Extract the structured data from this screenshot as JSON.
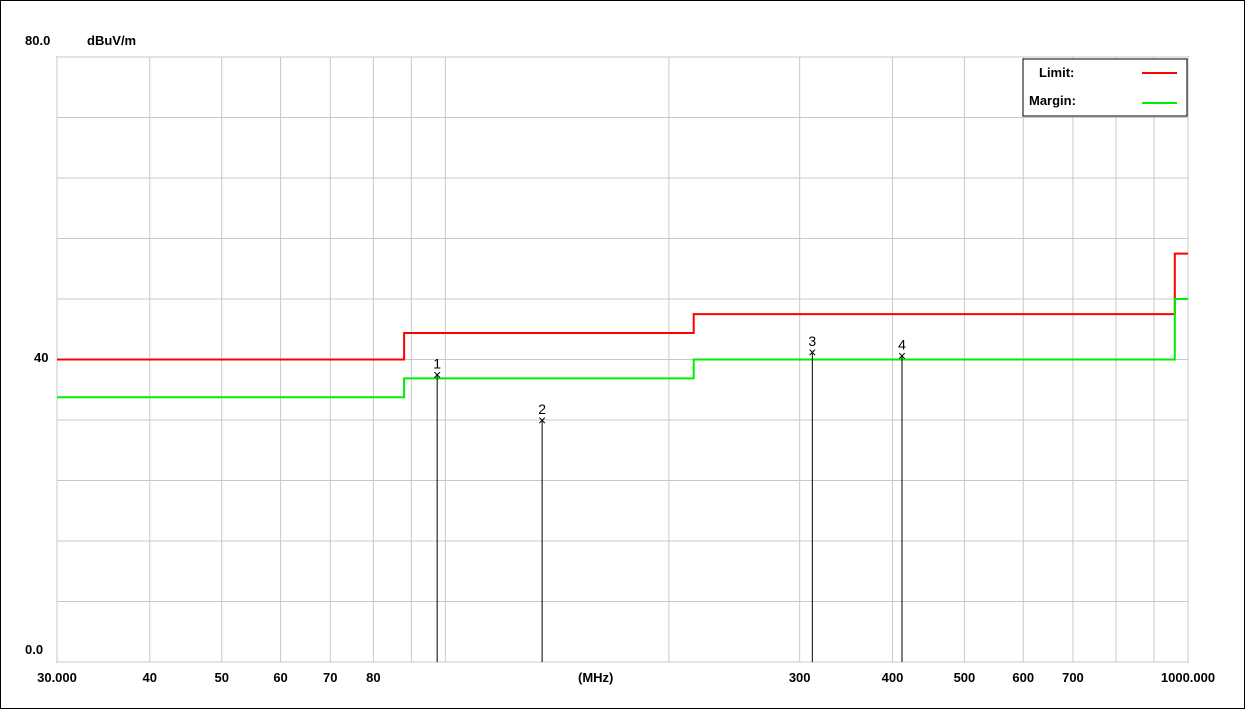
{
  "chart_data": {
    "type": "line",
    "y_top_label": "80.0",
    "y_mid_label": "40",
    "y_bottom_label": "0.0",
    "unit": "dBuV/m",
    "x_unit_label": "(MHz)",
    "x_scale": "log",
    "xlim": [
      30,
      1000
    ],
    "ylim": [
      0,
      80
    ],
    "grid": true,
    "legend_position": "top-right",
    "x_ticks": [
      {
        "value": 30,
        "label": "30.000"
      },
      {
        "value": 40,
        "label": "40"
      },
      {
        "value": 50,
        "label": "50"
      },
      {
        "value": 60,
        "label": "60"
      },
      {
        "value": 70,
        "label": "70"
      },
      {
        "value": 80,
        "label": "80"
      },
      {
        "value": 300,
        "label": "300"
      },
      {
        "value": 400,
        "label": "400"
      },
      {
        "value": 500,
        "label": "500"
      },
      {
        "value": 600,
        "label": "600"
      },
      {
        "value": 700,
        "label": "700"
      },
      {
        "value": 1000,
        "label": "1000.000"
      }
    ],
    "x_gridlines": [
      30,
      40,
      50,
      60,
      70,
      80,
      90,
      100,
      200,
      300,
      400,
      500,
      600,
      700,
      800,
      900,
      1000
    ],
    "y_gridlines": [
      0,
      8,
      16,
      24,
      32,
      40,
      48,
      56,
      64,
      72,
      80
    ],
    "series": [
      {
        "name": "Limit:",
        "color": "#ff0000",
        "points": [
          [
            30,
            40
          ],
          [
            88,
            40
          ],
          [
            88,
            43.5
          ],
          [
            216,
            43.5
          ],
          [
            216,
            46
          ],
          [
            960,
            46
          ],
          [
            960,
            54
          ],
          [
            1000,
            54
          ]
        ]
      },
      {
        "name": "Margin:",
        "color": "#00ee00",
        "points": [
          [
            30,
            35
          ],
          [
            88,
            35
          ],
          [
            88,
            37.5
          ],
          [
            216,
            37.5
          ],
          [
            216,
            40
          ],
          [
            960,
            40
          ],
          [
            960,
            48
          ],
          [
            1000,
            48
          ]
        ]
      }
    ],
    "markers": [
      {
        "label": "1",
        "x": 97.5,
        "y": 38.0
      },
      {
        "label": "2",
        "x": 135.0,
        "y": 32.0
      },
      {
        "label": "3",
        "x": 312.0,
        "y": 41.0
      },
      {
        "label": "4",
        "x": 412.0,
        "y": 40.5
      }
    ]
  }
}
